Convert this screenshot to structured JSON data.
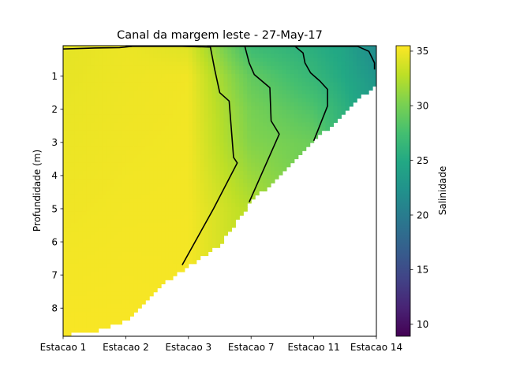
{
  "chart_data": {
    "type": "heatmap",
    "title": "Canal da margem leste - 27-May-17",
    "xlabel": "",
    "ylabel": "Profundidade (m)",
    "x_categories": [
      "Estacao 1",
      "Estacao 2",
      "Estacao 3",
      "Estacao 7",
      "Estacao 11",
      "Estacao 14"
    ],
    "y_ticks": [
      1,
      2,
      3,
      4,
      5,
      6,
      7,
      8
    ],
    "ylim": [
      8.85,
      0.08
    ],
    "y_inverted": true,
    "colorbar": {
      "label": "Salinidade",
      "colormap": "viridis",
      "range": [
        8.9,
        35.5
      ],
      "ticks": [
        10,
        15,
        20,
        25,
        30,
        35
      ]
    },
    "bottom_depth_m": [
      {
        "x": 0.0,
        "depth": 8.82
      },
      {
        "x": 0.5,
        "depth": 8.7
      },
      {
        "x": 1.0,
        "depth": 8.4
      },
      {
        "x": 1.5,
        "depth": 7.4
      },
      {
        "x": 2.0,
        "depth": 6.75
      },
      {
        "x": 2.5,
        "depth": 6.1
      },
      {
        "x": 3.0,
        "depth": 4.8
      },
      {
        "x": 3.5,
        "depth": 3.9
      },
      {
        "x": 4.0,
        "depth": 2.95
      },
      {
        "x": 4.5,
        "depth": 2.1
      },
      {
        "x": 5.0,
        "depth": 1.2
      }
    ],
    "salinity_profiles": [
      {
        "x": 0,
        "points": [
          {
            "depth": 0.1,
            "value": 34.5
          },
          {
            "depth": 9.0,
            "value": 35.3
          }
        ]
      },
      {
        "x": 1,
        "points": [
          {
            "depth": 0.1,
            "value": 34.8
          },
          {
            "depth": 9.0,
            "value": 35.3
          }
        ]
      },
      {
        "x": 2,
        "points": [
          {
            "depth": 0.1,
            "value": 34.2
          },
          {
            "depth": 1.0,
            "value": 35.0
          },
          {
            "depth": 9.0,
            "value": 35.2
          }
        ]
      },
      {
        "x": 3,
        "points": [
          {
            "depth": 0.1,
            "value": 27.0
          },
          {
            "depth": 1.0,
            "value": 29.0
          },
          {
            "depth": 2.0,
            "value": 30.0
          },
          {
            "depth": 3.0,
            "value": 30.5
          },
          {
            "depth": 4.0,
            "value": 31.5
          },
          {
            "depth": 5.0,
            "value": 32.5
          },
          {
            "depth": 9.0,
            "value": 33.0
          }
        ]
      },
      {
        "x": 4,
        "points": [
          {
            "depth": 0.1,
            "value": 25.5
          },
          {
            "depth": 1.0,
            "value": 26.5
          },
          {
            "depth": 2.0,
            "value": 28.0
          },
          {
            "depth": 3.0,
            "value": 29.5
          },
          {
            "depth": 9.0,
            "value": 30.0
          }
        ]
      },
      {
        "x": 4.45,
        "points": [
          {
            "depth": 0.1,
            "value": 24.5
          },
          {
            "depth": 1.0,
            "value": 25.0
          },
          {
            "depth": 2.0,
            "value": 26.0
          },
          {
            "depth": 9.0,
            "value": 27.0
          }
        ]
      },
      {
        "x": 5,
        "points": [
          {
            "depth": 0.1,
            "value": 21.5
          },
          {
            "depth": 0.5,
            "value": 22.0
          },
          {
            "depth": 1.2,
            "value": 23.0
          },
          {
            "depth": 9.0,
            "value": 24.0
          }
        ]
      }
    ],
    "contours": [
      {
        "points": [
          [
            0.0,
            0.18
          ],
          [
            0.5,
            0.15
          ],
          [
            0.9,
            0.14
          ],
          [
            1.1,
            0.1
          ]
        ]
      },
      {
        "points": [
          [
            1.0,
            0.1
          ],
          [
            1.9,
            0.1
          ],
          [
            2.35,
            0.12
          ],
          [
            2.42,
            0.8
          ],
          [
            2.5,
            1.5
          ],
          [
            2.65,
            1.75
          ],
          [
            2.72,
            3.45
          ],
          [
            2.78,
            3.62
          ],
          [
            2.4,
            5.0
          ],
          [
            1.9,
            6.7
          ]
        ]
      },
      {
        "points": [
          [
            2.3,
            0.1
          ],
          [
            2.9,
            0.1
          ],
          [
            2.97,
            0.6
          ],
          [
            3.05,
            0.95
          ],
          [
            3.3,
            1.35
          ],
          [
            3.32,
            2.35
          ],
          [
            3.45,
            2.75
          ],
          [
            2.97,
            4.8
          ]
        ]
      },
      {
        "points": [
          [
            2.9,
            0.1
          ],
          [
            3.7,
            0.1
          ],
          [
            3.83,
            0.3
          ],
          [
            3.86,
            0.6
          ],
          [
            3.95,
            0.9
          ],
          [
            4.1,
            1.15
          ],
          [
            4.22,
            1.4
          ],
          [
            4.22,
            1.9
          ],
          [
            4.0,
            2.95
          ]
        ]
      },
      {
        "points": [
          [
            3.7,
            0.1
          ],
          [
            4.7,
            0.1
          ],
          [
            4.88,
            0.25
          ],
          [
            4.97,
            0.6
          ],
          [
            4.97,
            0.8
          ]
        ]
      }
    ]
  }
}
